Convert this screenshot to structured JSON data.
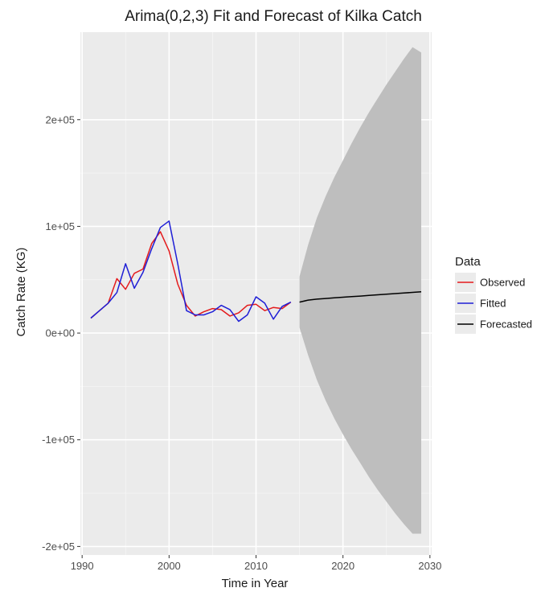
{
  "chart_data": {
    "type": "line",
    "title": "Arima(0,2,3) Fit and Forecast of Kilka Catch",
    "xlabel": "Time in Year",
    "ylabel": "Catch Rate (KG)",
    "xlim": [
      1989.8,
      2030.2
    ],
    "ylim": [
      -208000,
      282000
    ],
    "x_ticks": [
      1990,
      2000,
      2010,
      2020,
      2030
    ],
    "x_tick_labels": [
      "1990",
      "2000",
      "2010",
      "2020",
      "2030"
    ],
    "y_ticks": [
      -200000,
      -100000,
      0,
      100000,
      200000
    ],
    "y_tick_labels": [
      "-2e+05",
      "-1e+05",
      "0e+00",
      "1e+05",
      "2e+05"
    ],
    "grid": true,
    "legend": {
      "title": "Data",
      "position": "right",
      "entries": [
        {
          "label": "Observed",
          "color": "#e41a1c"
        },
        {
          "label": "Fitted",
          "color": "#1f1fd6"
        },
        {
          "label": "Forecasted",
          "color": "#000000"
        }
      ]
    },
    "series": [
      {
        "name": "Observed",
        "color": "#e41a1c",
        "x": [
          1991,
          1992,
          1993,
          1994,
          1995,
          1996,
          1997,
          1998,
          1999,
          2000,
          2001,
          2002,
          2003,
          2004,
          2005,
          2006,
          2007,
          2008,
          2009,
          2010,
          2011,
          2012,
          2013,
          2014
        ],
        "y": [
          14000,
          21000,
          28000,
          51000,
          41000,
          56000,
          60000,
          84000,
          95000,
          77000,
          46000,
          26000,
          16000,
          20000,
          23000,
          22000,
          16000,
          19000,
          26000,
          27000,
          21000,
          24000,
          23000,
          29000
        ]
      },
      {
        "name": "Fitted",
        "color": "#1f1fd6",
        "x": [
          1991,
          1992,
          1993,
          1994,
          1995,
          1996,
          1997,
          1998,
          1999,
          2000,
          2001,
          2002,
          2003,
          2004,
          2005,
          2006,
          2007,
          2008,
          2009,
          2010,
          2011,
          2012,
          2013,
          2014
        ],
        "y": [
          14000,
          21000,
          28000,
          38000,
          65000,
          42000,
          57000,
          79000,
          99000,
          105000,
          65000,
          21000,
          17000,
          17000,
          20000,
          26000,
          22000,
          11000,
          17000,
          34000,
          28000,
          13000,
          25000,
          29000
        ]
      },
      {
        "name": "Forecasted",
        "color": "#000000",
        "x": [
          2015,
          2016,
          2017,
          2018,
          2019,
          2020,
          2021,
          2022,
          2023,
          2024,
          2025,
          2026,
          2027,
          2028,
          2029
        ],
        "y": [
          29000,
          30900,
          31800,
          32400,
          33000,
          33600,
          34200,
          34700,
          35300,
          35900,
          36400,
          37000,
          37500,
          38100,
          38700
        ]
      }
    ],
    "forecast_interval": {
      "color": "#bebebe",
      "x": [
        2015,
        2016,
        2017,
        2018,
        2019,
        2020,
        2021,
        2022,
        2023,
        2024,
        2025,
        2026,
        2027,
        2028,
        2029
      ],
      "upper": [
        53000,
        83000,
        108000,
        128000,
        146000,
        162000,
        178000,
        193000,
        207000,
        220000,
        233000,
        245000,
        257000,
        268000,
        263000
      ],
      "lower": [
        5000,
        -21000,
        -44000,
        -63000,
        -80000,
        -95000,
        -109000,
        -122000,
        -135000,
        -147000,
        -158000,
        -169000,
        -179000,
        -188000,
        -188000
      ]
    }
  }
}
